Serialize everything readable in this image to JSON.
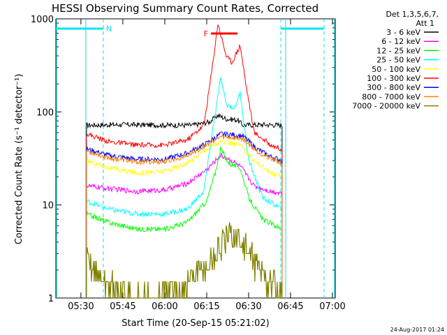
{
  "chart_data": {
    "type": "line",
    "title": "HESSI Observing Summary Count Rates, Corrected",
    "xlabel": "Start Time (20-Sep-15 05:21:02)",
    "ylabel": "Corrected Count Rate (s⁻¹ detector⁻¹)",
    "y_scale": "log",
    "ylim": [
      1,
      1000
    ],
    "xlim": [
      "05:21:02",
      "07:01:00"
    ],
    "x_ticks": [
      "05:30",
      "05:45",
      "06:00",
      "06:15",
      "06:30",
      "06:45",
      "07:00"
    ],
    "y_ticks": [
      "1",
      "10",
      "100",
      "1000"
    ],
    "grid": false,
    "legend_position": "right",
    "legend_header": [
      "Det 1,3,5,6,7,",
      "Att 1"
    ],
    "annotations": {
      "N": {
        "label": "N",
        "start": "05:21:02",
        "end": "05:38:00",
        "color": "#00e5ee"
      },
      "N2": {
        "label": "",
        "start": "06:41:30",
        "end": "06:57:00",
        "color": "#00e5ee"
      },
      "F": {
        "label": "F",
        "start": "06:16:30",
        "end": "06:26:00",
        "color": "#ff0000"
      },
      "vlines": [
        "05:38:00",
        "06:41:30",
        "06:57:00"
      ]
    },
    "data_gaps": [
      [
        "05:21:02",
        "05:32:00"
      ],
      [
        "06:43:00",
        "07:01:00"
      ]
    ],
    "series": [
      {
        "name": "3 - 6 keV",
        "color": "#000000",
        "points": [
          [
            "05:32",
            72
          ],
          [
            "05:45",
            73
          ],
          [
            "06:00",
            72
          ],
          [
            "06:10",
            72
          ],
          [
            "06:16",
            78
          ],
          [
            "06:19",
            92
          ],
          [
            "06:22",
            84
          ],
          [
            "06:26",
            82
          ],
          [
            "06:28",
            72
          ],
          [
            "06:35",
            73
          ],
          [
            "06:42",
            72
          ]
        ]
      },
      {
        "name": "6 - 12 keV",
        "color": "#ff00ff",
        "points": [
          [
            "05:32",
            16
          ],
          [
            "05:40",
            15
          ],
          [
            "05:50",
            14
          ],
          [
            "06:00",
            14.5
          ],
          [
            "06:08",
            17
          ],
          [
            "06:15",
            24
          ],
          [
            "06:20",
            34
          ],
          [
            "06:24",
            30
          ],
          [
            "06:27",
            26
          ],
          [
            "06:32",
            16
          ],
          [
            "06:38",
            14
          ],
          [
            "06:42",
            13.5
          ]
        ]
      },
      {
        "name": "12 - 25 keV",
        "color": "#00ff00",
        "points": [
          [
            "05:32",
            8
          ],
          [
            "05:40",
            6.5
          ],
          [
            "05:50",
            5.5
          ],
          [
            "06:00",
            5.5
          ],
          [
            "06:08",
            6.5
          ],
          [
            "06:15",
            11
          ],
          [
            "06:18",
            22
          ],
          [
            "06:20",
            40
          ],
          [
            "06:23",
            28
          ],
          [
            "06:27",
            25
          ],
          [
            "06:30",
            12
          ],
          [
            "06:35",
            7
          ],
          [
            "06:42",
            5.5
          ]
        ]
      },
      {
        "name": "25 - 50 keV",
        "color": "#00ffff",
        "points": [
          [
            "05:32",
            11
          ],
          [
            "05:40",
            9
          ],
          [
            "05:50",
            8
          ],
          [
            "06:00",
            8
          ],
          [
            "06:08",
            9
          ],
          [
            "06:14",
            14
          ],
          [
            "06:17",
            60
          ],
          [
            "06:20",
            230
          ],
          [
            "06:22",
            120
          ],
          [
            "06:25",
            110
          ],
          [
            "06:27",
            160
          ],
          [
            "06:30",
            30
          ],
          [
            "06:35",
            12
          ],
          [
            "06:42",
            9
          ]
        ]
      },
      {
        "name": "50 - 100 keV",
        "color": "#ffff00",
        "points": [
          [
            "05:32",
            30
          ],
          [
            "05:40",
            25
          ],
          [
            "05:50",
            22
          ],
          [
            "06:00",
            23
          ],
          [
            "06:08",
            28
          ],
          [
            "06:15",
            40
          ],
          [
            "06:20",
            48
          ],
          [
            "06:23",
            46
          ],
          [
            "06:27",
            44
          ],
          [
            "06:32",
            30
          ],
          [
            "06:38",
            22
          ],
          [
            "06:42",
            20
          ]
        ]
      },
      {
        "name": "100 - 300 keV",
        "color": "#ff0000",
        "points": [
          [
            "05:32",
            58
          ],
          [
            "05:40",
            48
          ],
          [
            "05:50",
            44
          ],
          [
            "06:00",
            44
          ],
          [
            "06:08",
            50
          ],
          [
            "06:14",
            72
          ],
          [
            "06:17",
            300
          ],
          [
            "06:19",
            900
          ],
          [
            "06:22",
            400
          ],
          [
            "06:24",
            340
          ],
          [
            "06:27",
            520
          ],
          [
            "06:29",
            200
          ],
          [
            "06:32",
            60
          ],
          [
            "06:38",
            44
          ],
          [
            "06:42",
            40
          ]
        ]
      },
      {
        "name": "300 - 800 keV",
        "color": "#0000ff",
        "points": [
          [
            "05:32",
            40
          ],
          [
            "05:40",
            34
          ],
          [
            "05:50",
            31
          ],
          [
            "06:00",
            31
          ],
          [
            "06:08",
            36
          ],
          [
            "06:15",
            46
          ],
          [
            "06:20",
            58
          ],
          [
            "06:24",
            57
          ],
          [
            "06:28",
            55
          ],
          [
            "06:33",
            40
          ],
          [
            "06:38",
            33
          ],
          [
            "06:42",
            30
          ]
        ]
      },
      {
        "name": "800 - 7000 keV",
        "color": "#ff8000",
        "points": [
          [
            "05:32",
            38
          ],
          [
            "05:40",
            32
          ],
          [
            "05:50",
            29
          ],
          [
            "06:00",
            29
          ],
          [
            "06:08",
            34
          ],
          [
            "06:15",
            44
          ],
          [
            "06:20",
            54
          ],
          [
            "06:24",
            53
          ],
          [
            "06:28",
            51
          ],
          [
            "06:33",
            38
          ],
          [
            "06:38",
            31
          ],
          [
            "06:42",
            28
          ]
        ]
      },
      {
        "name": "7000 - 20000 keV",
        "color": "#808000",
        "points": [
          [
            "05:32",
            2.5
          ],
          [
            "05:36",
            1.8
          ],
          [
            "05:42",
            1.2
          ],
          [
            "05:50",
            1
          ],
          [
            "06:00",
            1
          ],
          [
            "06:08",
            1.4
          ],
          [
            "06:15",
            2.2
          ],
          [
            "06:20",
            3.5
          ],
          [
            "06:24",
            4.8
          ],
          [
            "06:28",
            3.8
          ],
          [
            "06:33",
            2.2
          ],
          [
            "06:38",
            1.4
          ],
          [
            "06:42",
            1.1
          ]
        ]
      }
    ]
  },
  "timestamp": "24-Aug-2017 01:24"
}
